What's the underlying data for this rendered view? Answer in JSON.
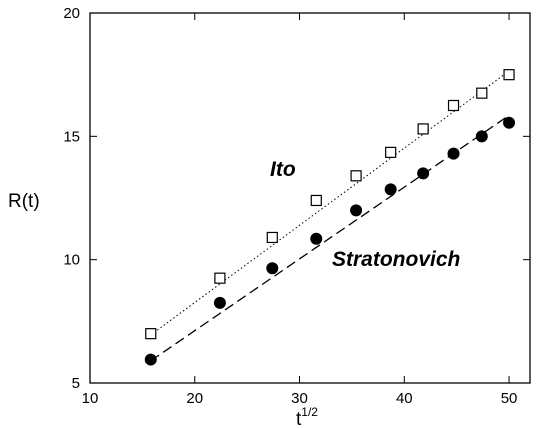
{
  "chart_data": {
    "type": "scatter",
    "title": "",
    "xlabel": "t",
    "xlabel_sup": "1/2",
    "ylabel": "R(t)",
    "xlim": [
      10,
      52
    ],
    "ylim": [
      5,
      20
    ],
    "xticks": [
      10,
      20,
      30,
      40,
      50
    ],
    "yticks": [
      5,
      10,
      15,
      20
    ],
    "grid": false,
    "series": [
      {
        "name": "Ito",
        "marker": "open-square",
        "fit_line": "dotted",
        "x": [
          15.8,
          22.4,
          27.4,
          31.6,
          35.4,
          38.7,
          41.8,
          44.7,
          47.4,
          50.0
        ],
        "y": [
          7.0,
          9.25,
          10.9,
          12.4,
          13.4,
          14.35,
          15.3,
          16.25,
          16.75,
          17.5
        ],
        "fit": [
          [
            15.8,
            6.95
          ],
          [
            50.0,
            17.65
          ]
        ]
      },
      {
        "name": "Stratonovich",
        "marker": "filled-circle",
        "fit_line": "dashed",
        "x": [
          15.8,
          22.4,
          27.4,
          31.6,
          35.4,
          38.7,
          41.8,
          44.7,
          47.4,
          50.0
        ],
        "y": [
          5.95,
          8.25,
          9.65,
          10.85,
          12.0,
          12.85,
          13.5,
          14.3,
          15.0,
          15.55
        ],
        "fit": [
          [
            15.8,
            5.9
          ],
          [
            50.0,
            15.85
          ]
        ]
      }
    ],
    "annotations": [
      "Ito",
      "Stratonovich"
    ]
  }
}
